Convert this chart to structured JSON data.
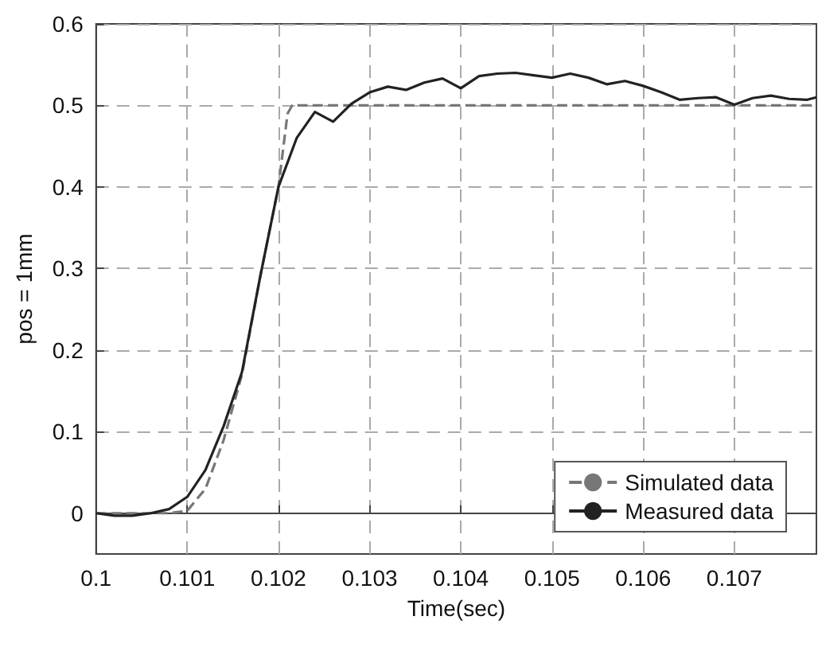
{
  "chart_data": {
    "type": "line",
    "xlabel": "Time(sec)",
    "ylabel": "pos = 1mm",
    "xlim": [
      0.1,
      0.1079
    ],
    "xticks": [
      0.1,
      0.101,
      0.102,
      0.103,
      0.104,
      0.105,
      0.106,
      0.107
    ],
    "ylim": [
      -0.05,
      0.6
    ],
    "yticks": [
      0,
      0.1,
      0.2,
      0.3,
      0.4,
      0.5,
      0.6
    ],
    "grid": true,
    "legend": "bottom right",
    "marker": "none",
    "series": [
      {
        "name": "Simulated data",
        "color": "#777777",
        "line_style": "dashed",
        "x": [
          0.1,
          0.1008,
          0.101,
          0.1012,
          0.1014,
          0.1016,
          0.1018,
          0.102,
          0.1021,
          0.10215,
          0.1079
        ],
        "values": [
          0,
          0,
          0.003,
          0.03,
          0.09,
          0.17,
          0.29,
          0.4,
          0.49,
          0.5,
          0.5
        ]
      },
      {
        "name": "Measured data",
        "color": "#222222",
        "line_style": "solid",
        "x": [
          0.1,
          0.1002,
          0.1004,
          0.1006,
          0.1008,
          0.101,
          0.1012,
          0.1014,
          0.1016,
          0.1018,
          0.102,
          0.1022,
          0.1024,
          0.1026,
          0.1028,
          0.103,
          0.1032,
          0.1034,
          0.1036,
          0.1038,
          0.104,
          0.1042,
          0.1044,
          0.1046,
          0.1048,
          0.105,
          0.1052,
          0.1054,
          0.1056,
          0.1058,
          0.106,
          0.1062,
          0.1064,
          0.1066,
          0.1068,
          0.107,
          0.1072,
          0.1074,
          0.1076,
          0.1078,
          0.1079
        ],
        "values": [
          0,
          -0.003,
          -0.003,
          0,
          0.005,
          0.02,
          0.053,
          0.107,
          0.173,
          0.29,
          0.4,
          0.46,
          0.492,
          0.48,
          0.502,
          0.516,
          0.523,
          0.519,
          0.528,
          0.533,
          0.521,
          0.536,
          0.539,
          0.54,
          0.537,
          0.534,
          0.539,
          0.534,
          0.526,
          0.53,
          0.524,
          0.516,
          0.507,
          0.509,
          0.51,
          0.501,
          0.509,
          0.512,
          0.508,
          0.507,
          0.51
        ]
      }
    ]
  }
}
